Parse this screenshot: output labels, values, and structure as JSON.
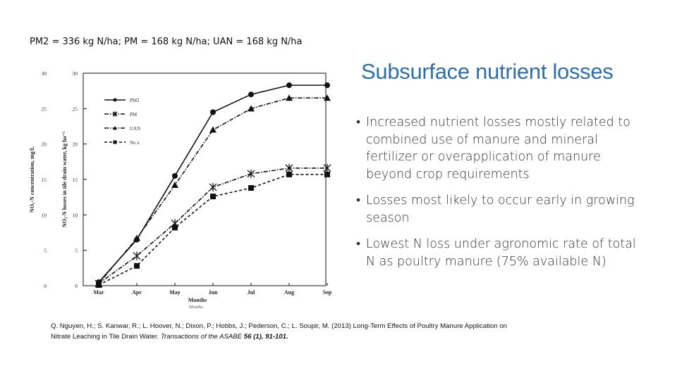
{
  "caption": "PM2 = 336 kg N/ha; PM = 168 kg N/ha; UAN = 168 kg N/ha",
  "slide": {
    "title": "Subsurface nutrient losses",
    "bullets": [
      "Increased nutrient losses mostly related to combined use of manure and mineral fertilizer or overapplication of manure beyond crop requirements",
      "Losses most likely to occur early in growing season",
      "Lowest N loss under agronomic rate of total N as poultry manure (75% available N)"
    ]
  },
  "citation": {
    "text": "Q. Nguyen, H.; S. Kanwar, R.; L. Hoover, N.; Dixon, P.; Hobbs, J.; Pederson, C.; L. Soupir, M. (2013) Long-Term Effects of Poultry Manure Application on Nitrate Leaching in Tile Drain Water.",
    "journal": "Transactions of the ASABE",
    "volume": "56 (1), 91-101."
  },
  "chart_data": {
    "type": "line",
    "categories": [
      "Mar",
      "Apr",
      "May",
      "Jun",
      "Jul",
      "Aug",
      "Sep"
    ],
    "series": [
      {
        "name": "PM2",
        "marker": "circle",
        "dash": "solid",
        "values": [
          0.5,
          6.5,
          15.5,
          24.5,
          27.0,
          28.3,
          28.3
        ]
      },
      {
        "name": "PM",
        "marker": "star",
        "dash": "dashdot",
        "values": [
          0.3,
          4.2,
          8.8,
          13.9,
          15.8,
          16.6,
          16.6
        ]
      },
      {
        "name": "UAN",
        "marker": "triangle",
        "dash": "dashdot",
        "values": [
          0.3,
          6.7,
          14.2,
          22.0,
          25.0,
          26.5,
          26.5
        ]
      },
      {
        "name": "No n",
        "marker": "square",
        "dash": "dashed",
        "values": [
          0.1,
          2.8,
          8.2,
          12.6,
          13.8,
          15.7,
          15.7
        ]
      }
    ],
    "xlabel": "Months",
    "xlabel2": "Months",
    "ylabel": "NO₃-N losses in tile drain water, kg ha⁻¹",
    "ylabel2": "NO₃-N concentration, mg/L",
    "ylim": [
      0,
      30
    ],
    "yticks": [
      0,
      5,
      10,
      15,
      20,
      25,
      30
    ],
    "ylim2": [
      0,
      30
    ],
    "yticks2": [
      0,
      5,
      10,
      15,
      20,
      25,
      30
    ],
    "legend_position": "top-left",
    "grid": false
  }
}
